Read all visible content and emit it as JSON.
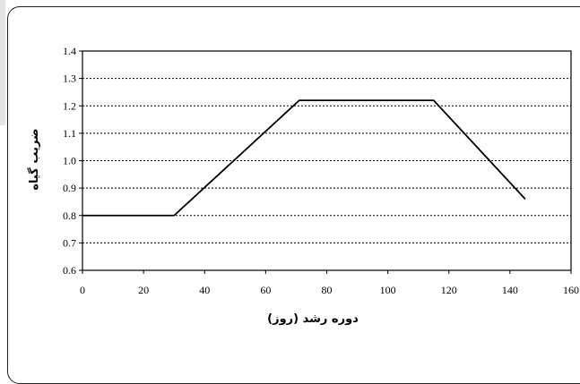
{
  "chart_data": {
    "type": "line",
    "title": "",
    "xlabel": "دوره رشد (روز)",
    "ylabel": "ضریب گیاه",
    "xlim": [
      0,
      160
    ],
    "ylim": [
      0.6,
      1.4
    ],
    "x_ticks": [
      0,
      20,
      40,
      60,
      80,
      100,
      120,
      140,
      160
    ],
    "y_ticks": [
      0.6,
      0.7,
      0.8,
      0.9,
      1.0,
      1.1,
      1.2,
      1.3,
      1.4
    ],
    "x_tick_labels": [
      "0",
      "20",
      "40",
      "60",
      "80",
      "100",
      "120",
      "140",
      "160"
    ],
    "y_tick_labels": [
      "0.6",
      "0.7",
      "0.8",
      "0.9",
      "1.0",
      "1.1",
      "1.2",
      "1.3",
      "1.4"
    ],
    "grid": "horizontal dotted",
    "legend": "none",
    "series": [
      {
        "x": [
          0,
          30,
          71,
          115,
          145
        ],
        "y": [
          0.8,
          0.8,
          1.22,
          1.22,
          0.86
        ]
      }
    ],
    "colors": {
      "line": "#000000",
      "grid": "#000000",
      "background": "#ffffff"
    }
  }
}
